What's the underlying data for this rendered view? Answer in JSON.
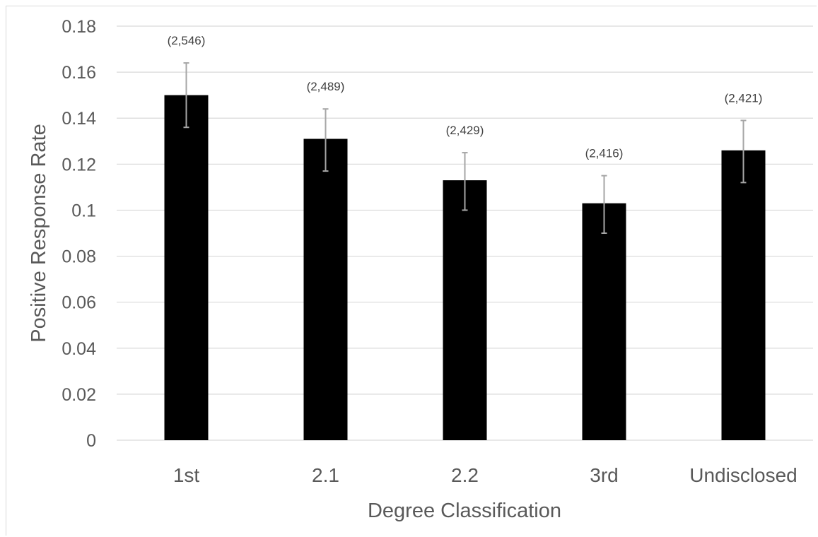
{
  "chart_data": {
    "type": "bar",
    "title": "",
    "xlabel": "Degree Classification",
    "ylabel": "Positive Response Rate",
    "categories": [
      "1st",
      "2.1",
      "2.2",
      "3rd",
      "Undisclosed"
    ],
    "values": [
      0.15,
      0.131,
      0.113,
      0.103,
      0.126
    ],
    "error_low": [
      0.136,
      0.117,
      0.1,
      0.09,
      0.112
    ],
    "error_high": [
      0.164,
      0.144,
      0.125,
      0.115,
      0.139
    ],
    "data_labels": [
      "(2,546)",
      "(2,489)",
      "(2,429)",
      "(2,416)",
      "(2,421)"
    ],
    "ylim": [
      0,
      0.18
    ],
    "yticks": [
      "0",
      "0.02",
      "0.04",
      "0.06",
      "0.08",
      "0.1",
      "0.12",
      "0.14",
      "0.16",
      "0.18"
    ],
    "ytick_values": [
      0,
      0.02,
      0.04,
      0.06,
      0.08,
      0.1,
      0.12,
      0.14,
      0.16,
      0.18
    ],
    "grid": true,
    "legend": "none",
    "colors": {
      "bar": "#000000",
      "error_bar": "#a6a6a6",
      "grid": "#d9d9d9",
      "text": "#595959"
    }
  }
}
